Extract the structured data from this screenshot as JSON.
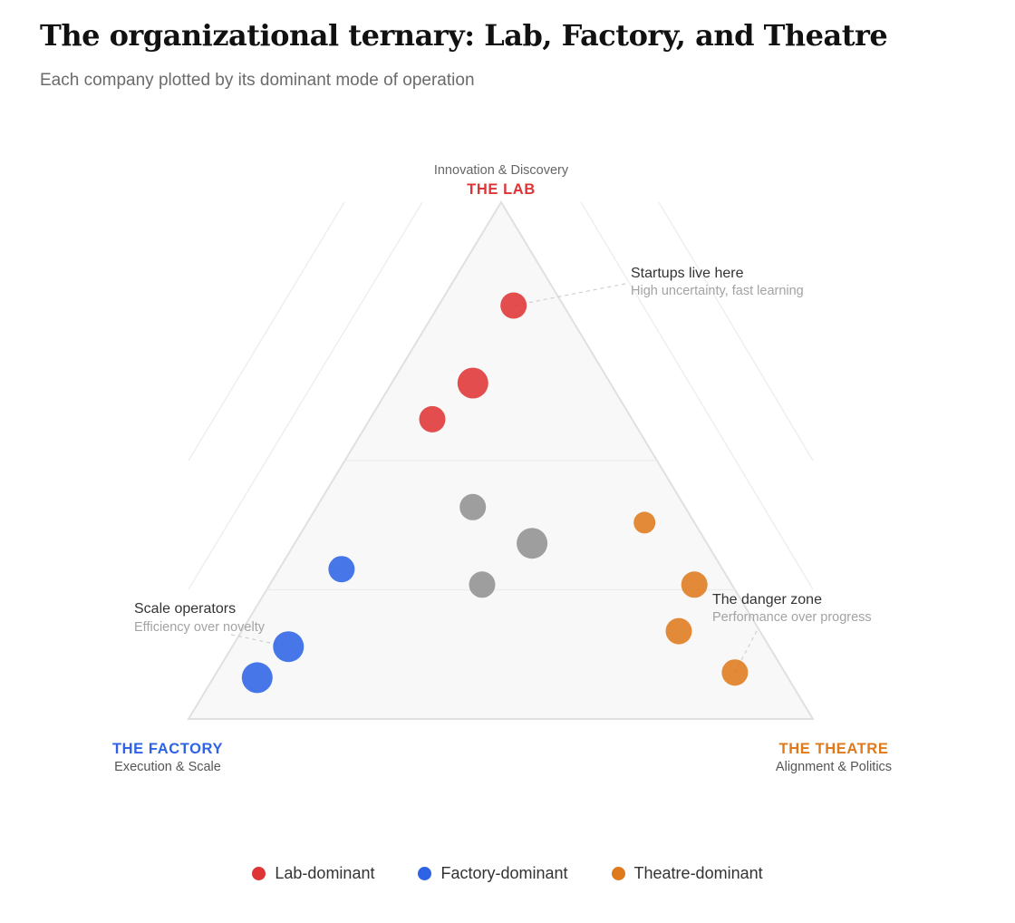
{
  "title": "The organizational ternary: Lab, Factory, and Theatre",
  "subtitle": "Each company plotted by its dominant mode of operation",
  "colors": {
    "lab": "#df3436",
    "factory": "#2e63e6",
    "theatre": "#de7a1c",
    "neutral": "#939393"
  },
  "chart_data": {
    "type": "scatter",
    "coordinate_system": "ternary",
    "axes": {
      "top": {
        "name": "THE LAB",
        "subtitle": "Innovation & Discovery",
        "color": "#df3436"
      },
      "left": {
        "name": "THE FACTORY",
        "subtitle": "Execution & Scale",
        "color": "#2e63e6"
      },
      "right": {
        "name": "THE THEATRE",
        "subtitle": "Alignment & Politics",
        "color": "#de7a1c"
      }
    },
    "bands": [
      0.25,
      0.5
    ],
    "points": [
      {
        "lab": 0.8,
        "factory": 0.08,
        "theatre": 0.12,
        "group": "lab",
        "size": "medium"
      },
      {
        "lab": 0.65,
        "factory": 0.22,
        "theatre": 0.13,
        "group": "lab",
        "size": "large"
      },
      {
        "lab": 0.58,
        "factory": 0.32,
        "theatre": 0.1,
        "group": "lab",
        "size": "medium"
      },
      {
        "lab": 0.41,
        "factory": 0.34,
        "theatre": 0.25,
        "group": "neutral",
        "size": "medium"
      },
      {
        "lab": 0.34,
        "factory": 0.28,
        "theatre": 0.38,
        "group": "neutral",
        "size": "large"
      },
      {
        "lab": 0.26,
        "factory": 0.4,
        "theatre": 0.34,
        "group": "neutral",
        "size": "medium"
      },
      {
        "lab": 0.38,
        "factory": 0.08,
        "theatre": 0.54,
        "group": "theatre",
        "size": "small"
      },
      {
        "lab": 0.26,
        "factory": 0.06,
        "theatre": 0.68,
        "group": "theatre",
        "size": "medium"
      },
      {
        "lab": 0.17,
        "factory": 0.13,
        "theatre": 0.7,
        "group": "theatre",
        "size": "medium"
      },
      {
        "lab": 0.09,
        "factory": 0.08,
        "theatre": 0.83,
        "group": "theatre",
        "size": "medium"
      },
      {
        "lab": 0.29,
        "factory": 0.61,
        "theatre": 0.1,
        "group": "factory",
        "size": "medium"
      },
      {
        "lab": 0.14,
        "factory": 0.77,
        "theatre": 0.09,
        "group": "factory",
        "size": "large"
      },
      {
        "lab": 0.08,
        "factory": 0.85,
        "theatre": 0.07,
        "group": "factory",
        "size": "large"
      }
    ],
    "annotations": [
      {
        "id": "startups",
        "title": "Startups live here",
        "note": "High uncertainty, fast learning"
      },
      {
        "id": "scale",
        "title": "Scale operators",
        "note": "Efficiency over novelty"
      },
      {
        "id": "danger",
        "title": "The danger zone",
        "note": "Performance over progress"
      }
    ],
    "legend": [
      {
        "label": "Lab-dominant",
        "group": "lab"
      },
      {
        "label": "Factory-dominant",
        "group": "factory"
      },
      {
        "label": "Theatre-dominant",
        "group": "theatre"
      }
    ]
  }
}
